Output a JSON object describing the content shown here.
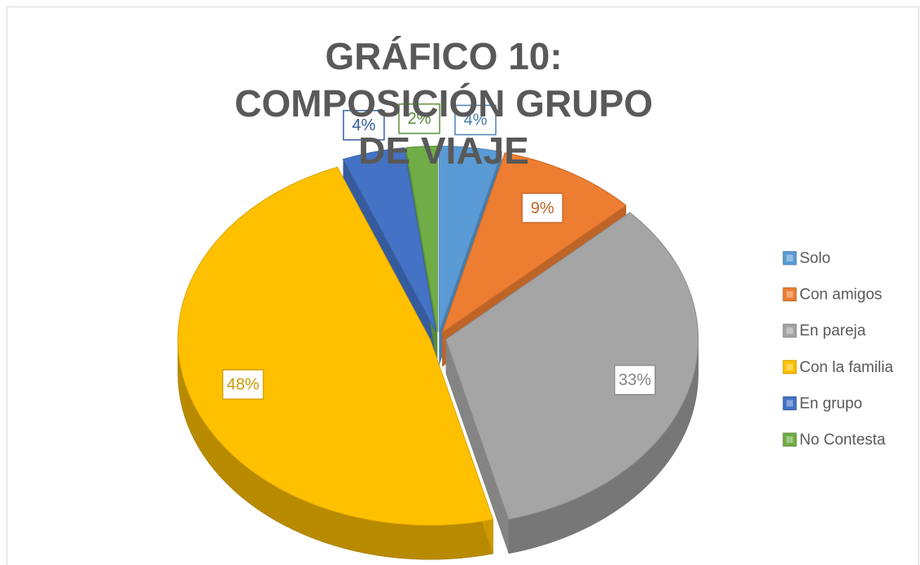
{
  "chart_data": {
    "type": "pie",
    "title": "GRÁFICO 10: COMPOSICIÓN GRUPO DE VIAJE",
    "categories": [
      "Solo",
      "Con amigos",
      "En pareja",
      "Con la familia",
      "En grupo",
      "No Contesta"
    ],
    "values": [
      4,
      9,
      33,
      48,
      4,
      2
    ],
    "value_labels": [
      "4%",
      "9%",
      "33%",
      "48%",
      "4%",
      "2%"
    ],
    "colors": [
      "#5b9bd5",
      "#ed7d31",
      "#a5a5a5",
      "#ffc000",
      "#4472c4",
      "#70ad47"
    ],
    "legend": "right"
  }
}
